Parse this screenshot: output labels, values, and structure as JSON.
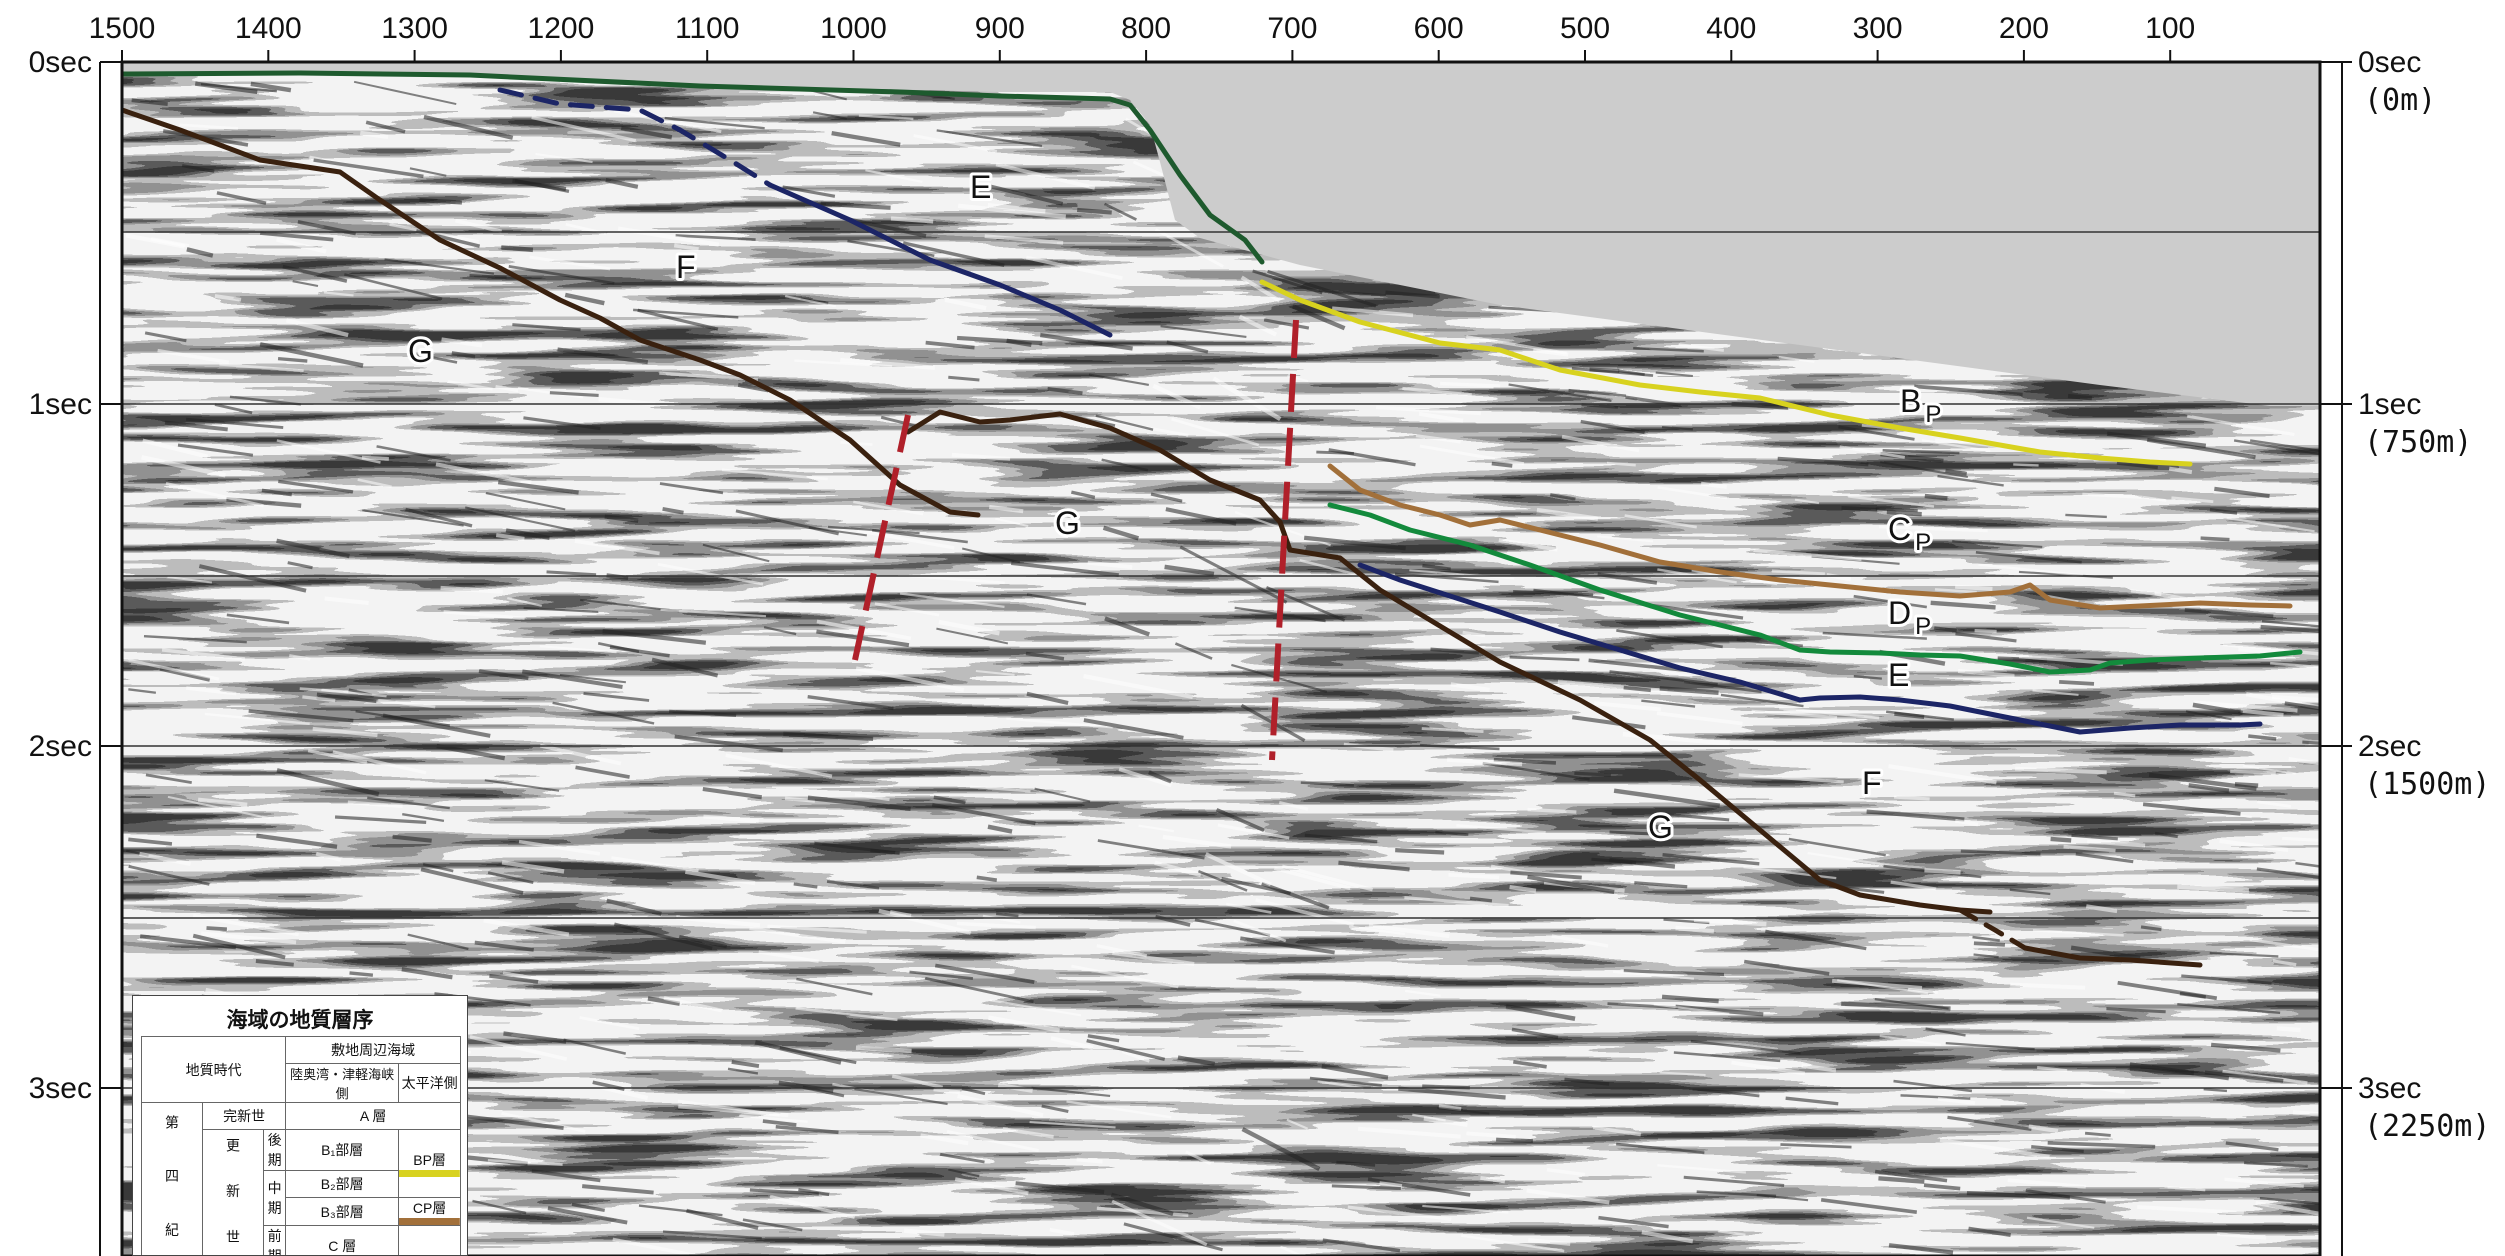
{
  "x_axis": {
    "ticks": [
      "1500",
      "1400",
      "1300",
      "1200",
      "1100",
      "1000",
      "900",
      "800",
      "700",
      "600",
      "500",
      "400",
      "300",
      "200",
      "100"
    ]
  },
  "y_axis_left": {
    "ticks": [
      "0sec",
      "1sec",
      "2sec",
      "3sec"
    ]
  },
  "y_axis_right": {
    "ticks": [
      {
        "time": "0sec",
        "depth": "(0m)"
      },
      {
        "time": "1sec",
        "depth": "(750m)"
      },
      {
        "time": "2sec",
        "depth": "(1500m)"
      },
      {
        "time": "3sec",
        "depth": "(2250m)"
      }
    ]
  },
  "layer_labels": [
    {
      "id": "E-shelf",
      "text": "E"
    },
    {
      "id": "F-shelf",
      "text": "F"
    },
    {
      "id": "G-shelf",
      "text": "G"
    },
    {
      "id": "G-mid",
      "text": "G"
    },
    {
      "id": "Bp",
      "text": "B",
      "sub": "P"
    },
    {
      "id": "Cp",
      "text": "C",
      "sub": "P"
    },
    {
      "id": "Dp",
      "text": "D",
      "sub": "P"
    },
    {
      "id": "E-slope",
      "text": "E"
    },
    {
      "id": "F-slope",
      "text": "F"
    },
    {
      "id": "G-slope",
      "text": "G"
    }
  ],
  "horizon_colors": {
    "seafloor": "#1e5a2e",
    "Bp": "#d8d21f",
    "Cp": "#a2703a",
    "Dp": "#138a3c",
    "E": "#1c2566",
    "G": "#3a210f",
    "fault": "#b0202a",
    "water": "#cccccc"
  },
  "legend": {
    "title": "海域の地質層序",
    "header": {
      "era": "地質時代",
      "region": "敷地周辺海域",
      "col_a": "陸奥湾・津軽海峡側",
      "col_b": "太平洋側"
    },
    "period": "第 四 紀",
    "epoch_1": "完新世",
    "epoch_2": "更 新 世",
    "ages": [
      "後期",
      "中期",
      "前期"
    ],
    "layers": {
      "a": "A 層",
      "b1": "B₁部層",
      "b2": "B₂部層",
      "b3": "B₃部層",
      "bp": "BP層",
      "cp": "CP層",
      "c": "C 層"
    }
  }
}
